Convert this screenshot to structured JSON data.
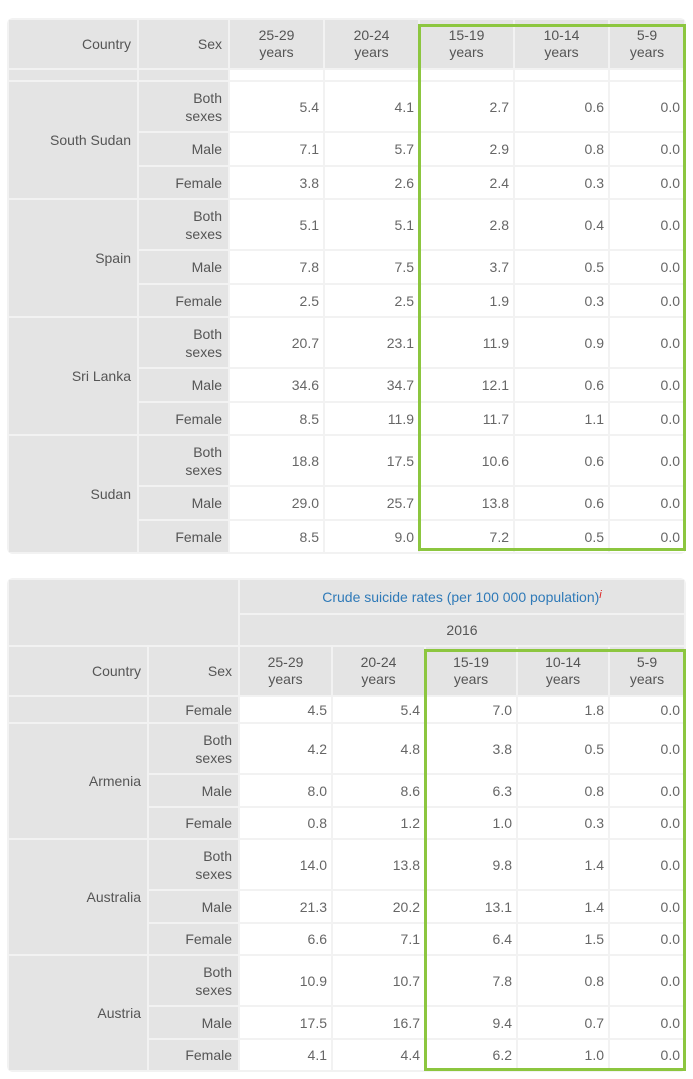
{
  "columns": {
    "country": "Country",
    "sex": "Sex",
    "ages": [
      "25-29\nyears",
      "20-24\nyears",
      "15-19\nyears",
      "10-14\nyears",
      "5-9\nyears"
    ]
  },
  "highlight_color": "#8cc63f",
  "top_table": {
    "groups": [
      {
        "country": "South Sudan",
        "rows": [
          {
            "sex": "Both sexes",
            "values": [
              "5.4",
              "4.1",
              "2.7",
              "0.6",
              "0.0"
            ]
          },
          {
            "sex": "Male",
            "values": [
              "7.1",
              "5.7",
              "2.9",
              "0.8",
              "0.0"
            ]
          },
          {
            "sex": "Female",
            "values": [
              "3.8",
              "2.6",
              "2.4",
              "0.3",
              "0.0"
            ]
          }
        ]
      },
      {
        "country": "Spain",
        "rows": [
          {
            "sex": "Both sexes",
            "values": [
              "5.1",
              "5.1",
              "2.8",
              "0.4",
              "0.0"
            ]
          },
          {
            "sex": "Male",
            "values": [
              "7.8",
              "7.5",
              "3.7",
              "0.5",
              "0.0"
            ]
          },
          {
            "sex": "Female",
            "values": [
              "2.5",
              "2.5",
              "1.9",
              "0.3",
              "0.0"
            ]
          }
        ]
      },
      {
        "country": "Sri Lanka",
        "rows": [
          {
            "sex": "Both sexes",
            "values": [
              "20.7",
              "23.1",
              "11.9",
              "0.9",
              "0.0"
            ]
          },
          {
            "sex": "Male",
            "values": [
              "34.6",
              "34.7",
              "12.1",
              "0.6",
              "0.0"
            ]
          },
          {
            "sex": "Female",
            "values": [
              "8.5",
              "11.9",
              "11.7",
              "1.1",
              "0.0"
            ]
          }
        ]
      },
      {
        "country": "Sudan",
        "rows": [
          {
            "sex": "Both sexes",
            "values": [
              "18.8",
              "17.5",
              "10.6",
              "0.6",
              "0.0"
            ]
          },
          {
            "sex": "Male",
            "values": [
              "29.0",
              "25.7",
              "13.8",
              "0.6",
              "0.0"
            ]
          },
          {
            "sex": "Female",
            "values": [
              "8.5",
              "9.0",
              "7.2",
              "0.5",
              "0.0"
            ]
          }
        ]
      }
    ]
  },
  "bottom_table": {
    "title": "Crude suicide rates (per 100 000 population)",
    "info_mark": "i",
    "year": "2016",
    "partial_row": {
      "sex": "Female",
      "values": [
        "4.5",
        "5.4",
        "7.0",
        "1.8",
        "0.0"
      ]
    },
    "groups": [
      {
        "country": "Armenia",
        "rows": [
          {
            "sex": "Both sexes",
            "values": [
              "4.2",
              "4.8",
              "3.8",
              "0.5",
              "0.0"
            ]
          },
          {
            "sex": "Male",
            "values": [
              "8.0",
              "8.6",
              "6.3",
              "0.8",
              "0.0"
            ]
          },
          {
            "sex": "Female",
            "values": [
              "0.8",
              "1.2",
              "1.0",
              "0.3",
              "0.0"
            ]
          }
        ]
      },
      {
        "country": "Australia",
        "rows": [
          {
            "sex": "Both sexes",
            "values": [
              "14.0",
              "13.8",
              "9.8",
              "1.4",
              "0.0"
            ]
          },
          {
            "sex": "Male",
            "values": [
              "21.3",
              "20.2",
              "13.1",
              "1.4",
              "0.0"
            ]
          },
          {
            "sex": "Female",
            "values": [
              "6.6",
              "7.1",
              "6.4",
              "1.5",
              "0.0"
            ]
          }
        ]
      },
      {
        "country": "Austria",
        "rows": [
          {
            "sex": "Both sexes",
            "values": [
              "10.9",
              "10.7",
              "7.8",
              "0.8",
              "0.0"
            ]
          },
          {
            "sex": "Male",
            "values": [
              "17.5",
              "16.7",
              "9.4",
              "0.7",
              "0.0"
            ]
          },
          {
            "sex": "Female",
            "values": [
              "4.1",
              "4.4",
              "6.2",
              "1.0",
              "0.0"
            ]
          }
        ]
      }
    ]
  }
}
